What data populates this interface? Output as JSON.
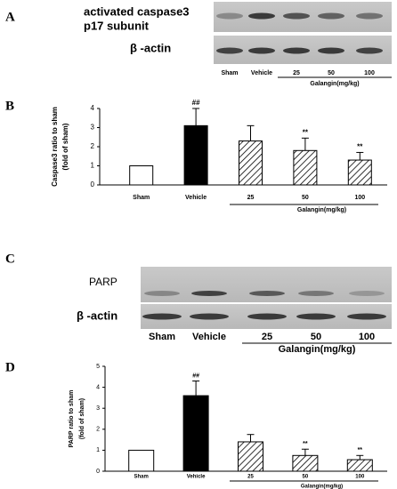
{
  "panels": {
    "a": {
      "label": "A",
      "blot_labels": [
        "activated caspase3",
        "p17 subunit",
        "β -actin"
      ],
      "lanes": [
        "Sham",
        "Vehicle",
        "25",
        "50",
        "100"
      ],
      "group_label": "Galangin(mg/kg)"
    },
    "c": {
      "label": "C",
      "blot_labels": [
        "PARP",
        "β -actin"
      ],
      "lanes": [
        "Sham",
        "Vehicle",
        "25",
        "50",
        "100"
      ],
      "group_label": "Galangin(mg/kg)"
    },
    "b": {
      "label": "B"
    },
    "d": {
      "label": "D"
    }
  },
  "chart_data": [
    {
      "type": "bar",
      "y_label": [
        "Caspase3 ratio to sham",
        "(fold of sham)"
      ],
      "categories": [
        "Sham",
        "Vehicle",
        "25",
        "50",
        "100"
      ],
      "values": [
        1,
        3.1,
        2.3,
        1.8,
        1.3
      ],
      "errors": [
        null,
        0.9,
        0.8,
        0.65,
        0.4
      ],
      "annotations": [
        null,
        "##",
        null,
        "**",
        "**"
      ],
      "bar_styles": [
        "open",
        "solid",
        "hatched",
        "hatched",
        "hatched"
      ],
      "color": "#000000",
      "group_label": "Galangin(mg/kg)",
      "ylim": [
        0,
        4
      ],
      "yticks": [
        0,
        1,
        2,
        3,
        4
      ]
    },
    {
      "type": "bar",
      "y_label": [
        "PARP ratio to sham",
        "(fold of sham)"
      ],
      "categories": [
        "Sham",
        "Vehicle",
        "25",
        "50",
        "100"
      ],
      "values": [
        1,
        3.6,
        1.4,
        0.75,
        0.55
      ],
      "errors": [
        null,
        0.7,
        0.35,
        0.3,
        0.2
      ],
      "annotations": [
        null,
        "##",
        null,
        "**",
        "**"
      ],
      "bar_styles": [
        "open",
        "solid",
        "hatched",
        "hatched",
        "hatched"
      ],
      "color": "#000000",
      "group_label": "Galangin(mg/kg)",
      "ylim": [
        0,
        5
      ],
      "yticks": [
        0,
        1,
        2,
        3,
        4,
        5
      ]
    }
  ]
}
